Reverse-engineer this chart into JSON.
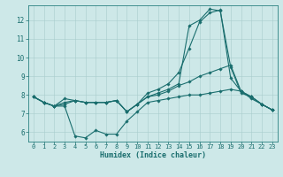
{
  "xlabel": "Humidex (Indice chaleur)",
  "bg_color": "#cde8e8",
  "grid_color": "#a8cccc",
  "line_color": "#1a6e6e",
  "spine_color": "#2a8080",
  "xlim": [
    -0.5,
    23.5
  ],
  "ylim": [
    5.5,
    12.8
  ],
  "yticks": [
    6,
    7,
    8,
    9,
    10,
    11,
    12
  ],
  "xticks": [
    0,
    1,
    2,
    3,
    4,
    5,
    6,
    7,
    8,
    9,
    10,
    11,
    12,
    13,
    14,
    15,
    16,
    17,
    18,
    19,
    20,
    21,
    22,
    23
  ],
  "line1_x": [
    0,
    1,
    2,
    3,
    4,
    5,
    6,
    7,
    8,
    9,
    10,
    11,
    12,
    13,
    14,
    15,
    16,
    17,
    18,
    19,
    20,
    21,
    22,
    23
  ],
  "line1_y": [
    7.9,
    7.6,
    7.4,
    7.4,
    5.8,
    5.7,
    6.1,
    5.9,
    5.9,
    6.6,
    7.1,
    7.6,
    7.7,
    7.8,
    7.9,
    8.0,
    8.0,
    8.1,
    8.2,
    8.3,
    8.2,
    7.8,
    7.5,
    7.2
  ],
  "line2_x": [
    0,
    1,
    2,
    3,
    4,
    5,
    6,
    7,
    8,
    9,
    10,
    11,
    12,
    13,
    14,
    15,
    16,
    17,
    18,
    19,
    20,
    21,
    22,
    23
  ],
  "line2_y": [
    7.9,
    7.6,
    7.4,
    7.5,
    7.7,
    7.6,
    7.6,
    7.6,
    7.7,
    7.1,
    7.5,
    8.1,
    8.3,
    8.6,
    9.2,
    10.5,
    11.9,
    12.4,
    12.55,
    8.9,
    8.2,
    7.9,
    7.5,
    7.2
  ],
  "line3_x": [
    0,
    1,
    2,
    3,
    4,
    5,
    6,
    7,
    8,
    9,
    10,
    11,
    12,
    13,
    14,
    15,
    16,
    17,
    18,
    19,
    20,
    21,
    22,
    23
  ],
  "line3_y": [
    7.9,
    7.6,
    7.4,
    7.8,
    7.7,
    7.6,
    7.6,
    7.6,
    7.7,
    7.1,
    7.5,
    7.9,
    8.1,
    8.3,
    8.6,
    11.7,
    12.0,
    12.6,
    12.5,
    9.5,
    8.1,
    7.9,
    7.5,
    7.2
  ],
  "line4_x": [
    0,
    1,
    2,
    3,
    4,
    5,
    6,
    7,
    8,
    9,
    10,
    11,
    12,
    13,
    14,
    15,
    16,
    17,
    18,
    19,
    20,
    21,
    22,
    23
  ],
  "line4_y": [
    7.9,
    7.6,
    7.4,
    7.6,
    7.7,
    7.6,
    7.6,
    7.6,
    7.7,
    7.1,
    7.5,
    7.9,
    8.0,
    8.2,
    8.5,
    8.7,
    9.0,
    9.2,
    9.4,
    9.6,
    8.2,
    7.9,
    7.5,
    7.2
  ],
  "tick_fontsize": 5.0,
  "xlabel_fontsize": 6.0
}
